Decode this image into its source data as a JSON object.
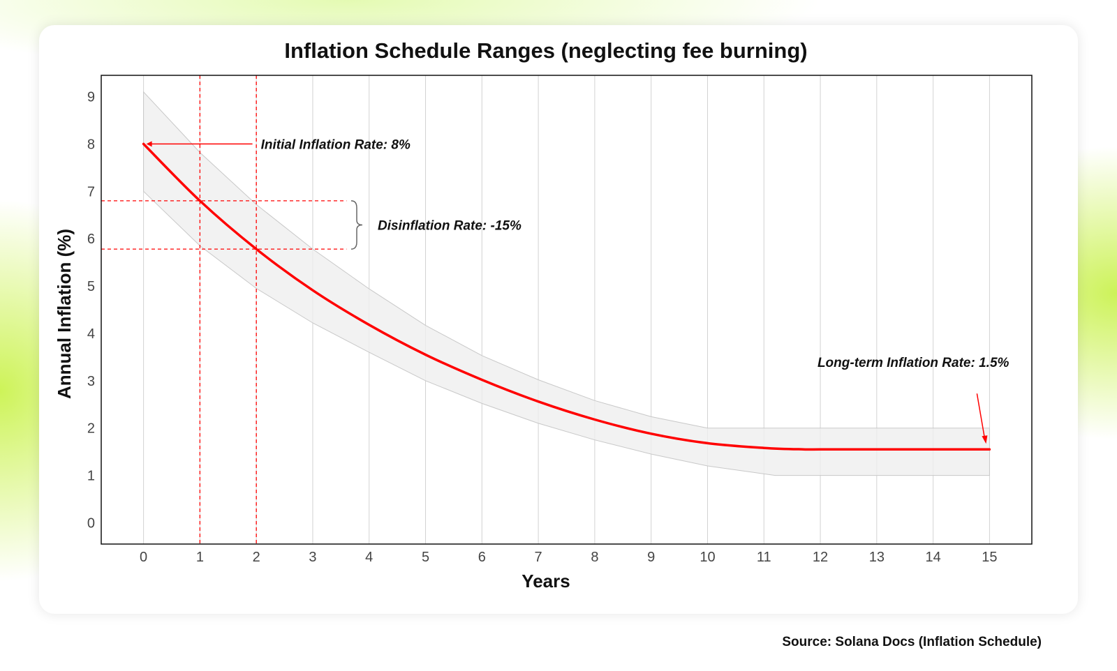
{
  "source_note": "Source: Solana Docs (Inflation Schedule)",
  "chart_data": {
    "type": "line",
    "title": "Inflation Schedule Ranges (neglecting fee burning)",
    "xlabel": "Years",
    "ylabel": "Annual Inflation (%)",
    "xlim": [
      -0.75,
      15.75
    ],
    "ylim": [
      -0.45,
      9.45
    ],
    "x_ticks": [
      0,
      1,
      2,
      3,
      4,
      5,
      6,
      7,
      8,
      9,
      10,
      11,
      12,
      13,
      14,
      15
    ],
    "y_ticks": [
      0,
      1,
      2,
      3,
      4,
      5,
      6,
      7,
      8,
      9
    ],
    "grid": "vertical",
    "series": [
      {
        "color": "#ff0000",
        "x": [
          0,
          1,
          2,
          3,
          4,
          5,
          6,
          7,
          8,
          9,
          10,
          11,
          11.7,
          12,
          13,
          14,
          15
        ],
        "y": [
          8.0,
          6.8,
          5.78,
          4.91,
          4.18,
          3.55,
          3.02,
          2.56,
          2.18,
          1.88,
          1.68,
          1.58,
          1.55,
          1.55,
          1.55,
          1.55,
          1.55
        ]
      }
    ],
    "range_band": {
      "x": [
        0,
        1,
        2,
        3,
        4,
        5,
        6,
        7,
        8,
        9,
        10,
        11.2,
        15
      ],
      "upper": [
        9.1,
        7.82,
        6.72,
        5.78,
        4.94,
        4.17,
        3.53,
        3.02,
        2.58,
        2.24,
        2.0,
        2.0,
        2.0
      ],
      "lower": [
        7.0,
        5.85,
        4.95,
        4.22,
        3.6,
        3.0,
        2.52,
        2.1,
        1.75,
        1.45,
        1.2,
        1.0,
        1.0
      ]
    },
    "annotations": [
      {
        "text": "Initial Inflation Rate: 8%",
        "point": [
          0,
          8.0
        ]
      },
      {
        "text": "Disinflation Rate: -15%",
        "from": 6.8,
        "to": 5.78
      },
      {
        "text": "Long-term Inflation Rate: 1.5%",
        "point": [
          15,
          1.55
        ]
      }
    ]
  }
}
